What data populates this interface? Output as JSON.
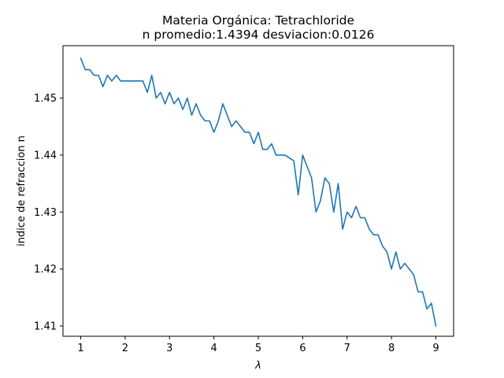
{
  "chart_data": {
    "type": "line",
    "title": "Materia Orgánica: Tetrachloride",
    "subtitle": "n promedio:1.4394 desviacion:0.0126",
    "xlabel": "λ",
    "ylabel": "indice de refraccion n",
    "xlim": [
      0.6,
      9.4
    ],
    "ylim": [
      1.4082,
      1.4592
    ],
    "x_ticks": [
      1,
      2,
      3,
      4,
      5,
      6,
      7,
      8,
      9
    ],
    "y_ticks": [
      1.41,
      1.42,
      1.43,
      1.44,
      1.45
    ],
    "x_tick_labels": [
      "1",
      "2",
      "3",
      "4",
      "5",
      "6",
      "7",
      "8",
      "9"
    ],
    "y_tick_labels": [
      "1.41",
      "1.42",
      "1.43",
      "1.44",
      "1.45"
    ],
    "grid": false,
    "series": [
      {
        "color": "#1f77b4",
        "x": [
          1.0,
          1.1,
          1.2,
          1.3,
          1.4,
          1.5,
          1.6,
          1.7,
          1.8,
          1.9,
          2.0,
          2.1,
          2.2,
          2.3,
          2.4,
          2.5,
          2.6,
          2.7,
          2.8,
          2.9,
          3.0,
          3.1,
          3.2,
          3.3,
          3.4,
          3.5,
          3.6,
          3.7,
          3.8,
          3.9,
          4.0,
          4.1,
          4.2,
          4.3,
          4.4,
          4.5,
          4.6,
          4.7,
          4.8,
          4.9,
          5.0,
          5.1,
          5.2,
          5.3,
          5.4,
          5.5,
          5.6,
          5.7,
          5.8,
          5.9,
          6.0,
          6.1,
          6.2,
          6.3,
          6.4,
          6.5,
          6.6,
          6.7,
          6.8,
          6.9,
          7.0,
          7.1,
          7.2,
          7.3,
          7.4,
          7.5,
          7.6,
          7.7,
          7.8,
          7.9,
          8.0,
          8.1,
          8.2,
          8.3,
          8.4,
          8.5,
          8.6,
          8.7,
          8.8,
          8.9,
          9.0
        ],
        "y": [
          1.457,
          1.455,
          1.455,
          1.454,
          1.454,
          1.452,
          1.454,
          1.453,
          1.454,
          1.453,
          1.453,
          1.453,
          1.453,
          1.453,
          1.453,
          1.451,
          1.454,
          1.45,
          1.451,
          1.449,
          1.451,
          1.449,
          1.45,
          1.448,
          1.45,
          1.447,
          1.449,
          1.447,
          1.446,
          1.446,
          1.444,
          1.446,
          1.449,
          1.447,
          1.445,
          1.446,
          1.445,
          1.444,
          1.444,
          1.442,
          1.444,
          1.441,
          1.441,
          1.442,
          1.44,
          1.44,
          1.44,
          1.4395,
          1.439,
          1.433,
          1.44,
          1.438,
          1.436,
          1.43,
          1.432,
          1.436,
          1.435,
          1.43,
          1.435,
          1.427,
          1.43,
          1.429,
          1.431,
          1.429,
          1.429,
          1.427,
          1.426,
          1.426,
          1.424,
          1.423,
          1.42,
          1.423,
          1.42,
          1.421,
          1.42,
          1.419,
          1.416,
          1.416,
          1.413,
          1.414,
          1.41
        ]
      }
    ]
  }
}
